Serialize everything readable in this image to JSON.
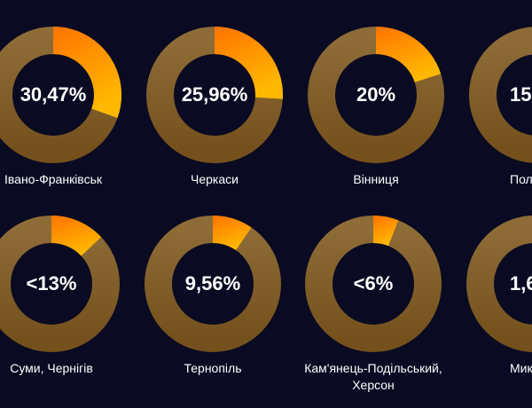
{
  "colors": {
    "background": "#0a0a22",
    "ring_top": "#8e6c37",
    "ring_bottom": "#74511c",
    "slice_start": "#ff7300",
    "slice_end": "#ffb800"
  },
  "chart_data": [
    {
      "type": "pie",
      "style": "donut",
      "label": "Івано-Франківськ",
      "value_text": "30,47%",
      "value": 30.47
    },
    {
      "type": "pie",
      "style": "donut",
      "label": "Черкаси",
      "value_text": "25,96%",
      "value": 25.96
    },
    {
      "type": "pie",
      "style": "donut",
      "label": "Вінниця",
      "value_text": "20%",
      "value": 20
    },
    {
      "type": "pie",
      "style": "donut",
      "label": "Пол",
      "value_text": "15,",
      "value": 15
    },
    {
      "type": "pie",
      "style": "donut",
      "label": "Суми, Чернігів",
      "value_text": "<13%",
      "value": 13
    },
    {
      "type": "pie",
      "style": "donut",
      "label": "Тернопіль",
      "value_text": "9,56%",
      "value": 9.56
    },
    {
      "type": "pie",
      "style": "donut",
      "label": "Кам'янець-Подільський,",
      "label2": "Херсон",
      "value_text": "<6%",
      "value": 6
    },
    {
      "type": "pie",
      "style": "donut",
      "label": "Мик",
      "value_text": "1,6",
      "value": 1.6
    }
  ]
}
